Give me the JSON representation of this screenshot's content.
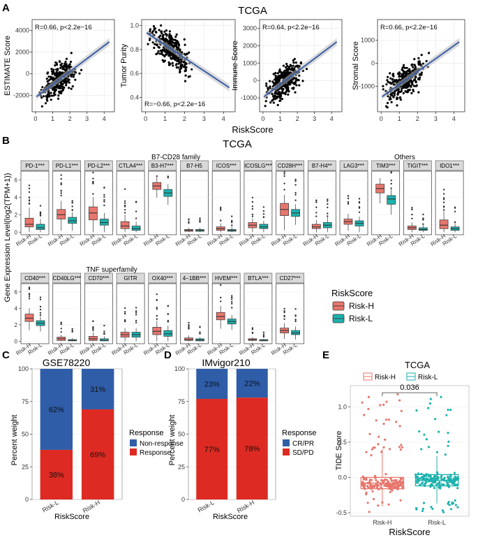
{
  "colors": {
    "risk_h": "#E8766D",
    "risk_l": "#1DB2AE",
    "blue": "#2F5DA8",
    "red": "#DD2B23",
    "strip": "#D9D9D9",
    "reg_line": "#3C5FA8",
    "ci": "#BDBDBD"
  },
  "panel_a": {
    "letter": "A",
    "title": "TCGA",
    "xlabel": "RiskScore",
    "xticks": [
      "0",
      "1",
      "2",
      "3",
      "4"
    ],
    "plots": [
      {
        "ylabel": "ESTIMATE Score",
        "annotation": "R=0.66, p<2.2e−16",
        "yticks": [
          "-2000",
          "0",
          "2000",
          "4000"
        ],
        "yrange": [
          -3500,
          5000
        ],
        "ann_pos": "top",
        "slope": 0.66
      },
      {
        "ylabel": "Tumor Purity",
        "annotation": "R=−0.66, p<2.2e−16",
        "yticks": [
          "0.4",
          "0.6",
          "0.8",
          "1.0"
        ],
        "yrange": [
          0.28,
          1.05
        ],
        "ann_pos": "bottom",
        "slope": -0.66
      },
      {
        "ylabel": "Immune Score",
        "annotation": "R=0.64, p<2.2e−16",
        "yticks": [
          "-1000",
          "0",
          "1000",
          "2000",
          "3000"
        ],
        "yrange": [
          -1800,
          3500
        ],
        "ann_pos": "top",
        "slope": 0.64
      },
      {
        "ylabel": "Stromal Score",
        "annotation": "R=0.66, p<2.2e−16",
        "yticks": [
          "-1000",
          "0",
          "1000"
        ],
        "yrange": [
          -2100,
          1900
        ],
        "ann_pos": "top",
        "slope": 0.66
      }
    ]
  },
  "panel_b": {
    "letter": "B",
    "title": "TCGA",
    "ylabel": "Gene Expression Level(log2(TPM+1))",
    "family_labels": [
      "B7-CD28 family",
      "Others",
      "TNF superfamily"
    ],
    "yticks": [
      "0",
      "2",
      "4",
      "6"
    ],
    "groups": [
      "Risk-H",
      "Risk-L"
    ],
    "legend_title": "RiskScore",
    "row1": [
      {
        "gene": "PD-1***",
        "h": [
          0.6,
          0.9,
          1.6,
          2.8
        ],
        "l": [
          0.3,
          0.5,
          0.9,
          1.5
        ]
      },
      {
        "gene": "PD-L1***",
        "h": [
          1.5,
          2.0,
          2.6,
          3.6
        ],
        "l": [
          1.0,
          1.3,
          1.7,
          2.3
        ]
      },
      {
        "gene": "PD-L2***",
        "h": [
          1.4,
          2.2,
          2.9,
          4.0
        ],
        "l": [
          0.8,
          1.1,
          1.5,
          2.2
        ]
      },
      {
        "gene": "CTLA4***",
        "h": [
          0.4,
          0.7,
          1.2,
          2.0
        ],
        "l": [
          0.2,
          0.4,
          0.7,
          1.2
        ]
      },
      {
        "gene": "B3-H7***",
        "h": [
          4.9,
          5.3,
          5.7,
          6.3
        ],
        "l": [
          4.1,
          4.5,
          4.9,
          5.5
        ]
      },
      {
        "gene": "B7-H5",
        "h": [
          0.1,
          0.2,
          0.3,
          0.5
        ],
        "l": [
          0.1,
          0.2,
          0.3,
          0.5
        ]
      },
      {
        "gene": "ICOS***",
        "h": [
          0.2,
          0.4,
          0.6,
          1.0
        ],
        "l": [
          0.1,
          0.2,
          0.3,
          0.6
        ]
      },
      {
        "gene": "ICOSLG***",
        "h": [
          0.5,
          0.8,
          1.1,
          1.6
        ],
        "l": [
          0.4,
          0.6,
          0.9,
          1.3
        ]
      },
      {
        "gene": "CD28H***",
        "h": [
          1.9,
          2.6,
          3.3,
          4.3
        ],
        "l": [
          1.8,
          2.2,
          2.6,
          3.2
        ]
      },
      {
        "gene": "B7-H4**",
        "h": [
          0.4,
          0.6,
          0.9,
          1.4
        ],
        "l": [
          0.5,
          0.8,
          1.1,
          1.7
        ]
      },
      {
        "gene": "LAG3***",
        "h": [
          0.9,
          1.2,
          1.5,
          2.1
        ],
        "l": [
          0.7,
          1.0,
          1.3,
          1.8
        ]
      },
      {
        "gene": "TIM3***",
        "h": [
          4.5,
          5.0,
          5.5,
          6.2
        ],
        "l": [
          3.2,
          3.8,
          4.2,
          4.9
        ]
      },
      {
        "gene": "TIGIT***",
        "h": [
          0.3,
          0.5,
          0.7,
          1.1
        ],
        "l": [
          0.2,
          0.3,
          0.5,
          0.8
        ]
      },
      {
        "gene": "IDO1***",
        "h": [
          0.4,
          0.8,
          1.4,
          2.4
        ],
        "l": [
          0.2,
          0.4,
          0.6,
          1.0
        ]
      }
    ],
    "row2": [
      {
        "gene": "CD40***",
        "h": [
          2.4,
          2.8,
          3.3,
          4.0
        ],
        "l": [
          1.9,
          2.2,
          2.5,
          3.0
        ]
      },
      {
        "gene": "CD40LG***",
        "h": [
          0.1,
          0.3,
          0.5,
          0.8
        ],
        "l": [
          0.05,
          0.1,
          0.2,
          0.4
        ]
      },
      {
        "gene": "CD70***",
        "h": [
          0.1,
          0.3,
          0.6,
          1.1
        ],
        "l": [
          0.05,
          0.1,
          0.3,
          0.6
        ]
      },
      {
        "gene": "GITR",
        "h": [
          0.5,
          0.8,
          1.1,
          1.6
        ],
        "l": [
          0.5,
          0.8,
          1.1,
          1.6
        ]
      },
      {
        "gene": "OX40***",
        "h": [
          0.8,
          1.2,
          1.7,
          2.5
        ],
        "l": [
          0.6,
          0.9,
          1.3,
          1.9
        ]
      },
      {
        "gene": "4−1BB***",
        "h": [
          0.1,
          0.2,
          0.4,
          0.7
        ],
        "l": [
          0.05,
          0.15,
          0.3,
          0.5
        ]
      },
      {
        "gene": "HVEM***",
        "h": [
          2.6,
          3.0,
          3.5,
          4.3
        ],
        "l": [
          2.1,
          2.4,
          2.7,
          3.2
        ]
      },
      {
        "gene": "BTLA***",
        "h": [
          0.1,
          0.2,
          0.3,
          0.5
        ],
        "l": [
          0.05,
          0.1,
          0.2,
          0.3
        ]
      },
      {
        "gene": "CD27***",
        "h": [
          1.0,
          1.3,
          1.6,
          2.2
        ],
        "l": [
          0.8,
          1.0,
          1.3,
          1.8
        ]
      }
    ]
  },
  "panel_c": {
    "letter": "C",
    "title": "GSE78220",
    "ylabel": "Percent weight",
    "xlabel": "RiskScore",
    "categories": [
      "Risk-L",
      "Risk-H"
    ],
    "yticks": [
      "0",
      "25",
      "50",
      "75",
      "100"
    ],
    "series": [
      {
        "name": "Response",
        "values": [
          38,
          69
        ],
        "labels": [
          "38%",
          "69%"
        ]
      },
      {
        "name": "Non-response",
        "values": [
          62,
          31
        ],
        "labels": [
          "62%",
          "31%"
        ]
      }
    ],
    "legend_title": "Response"
  },
  "panel_d": {
    "letter": "D",
    "title": "IMvigor210",
    "ylabel": "Percent weight",
    "xlabel": "RiskScore",
    "categories": [
      "Risk-L",
      "Risk-H"
    ],
    "yticks": [
      "0",
      "25",
      "50",
      "75",
      "100"
    ],
    "series": [
      {
        "name": "SD/PD",
        "values": [
          77,
          78
        ],
        "labels": [
          "77%",
          "78%"
        ]
      },
      {
        "name": "CR/PR",
        "values": [
          23,
          22
        ],
        "labels": [
          "23%",
          "22%"
        ]
      }
    ],
    "legend_title": "Response"
  },
  "panel_e": {
    "letter": "E",
    "title": "TCGA",
    "ylabel": "TIDE Score",
    "xlabel": "RiskScore",
    "legend_items": [
      "Risk-H",
      "Risk-L"
    ],
    "categories": [
      "Risk-H",
      "Risk-L"
    ],
    "yticks": [
      "-0.5",
      "0.0",
      "0.5",
      "1.0"
    ],
    "yrange": [
      -0.55,
      1.3
    ],
    "pvalue": "0.036",
    "boxes": [
      [
        -0.16,
        -0.08,
        0.0,
        0.4
      ],
      [
        -0.12,
        -0.04,
        0.04,
        0.3
      ]
    ]
  },
  "chart_data": [
    {
      "type": "scatter",
      "title": "TCGA",
      "xlabel": "RiskScore",
      "ylabel": "ESTIMATE Score",
      "series": [
        {
          "name": "ESTIMATE Score",
          "correlation": 0.66
        }
      ],
      "annotations": [
        "R=0.66, p<2.2e−16"
      ]
    },
    {
      "type": "scatter",
      "xlabel": "RiskScore",
      "ylabel": "Tumor Purity",
      "series": [
        {
          "name": "Tumor Purity",
          "correlation": -0.66
        }
      ],
      "annotations": [
        "R=−0.66, p<2.2e−16"
      ]
    },
    {
      "type": "scatter",
      "xlabel": "RiskScore",
      "ylabel": "Immune Score",
      "series": [
        {
          "name": "Immune Score",
          "correlation": 0.64
        }
      ],
      "annotations": [
        "R=0.64, p<2.2e−16"
      ]
    },
    {
      "type": "scatter",
      "xlabel": "RiskScore",
      "ylabel": "Stromal Score",
      "series": [
        {
          "name": "Stromal Score",
          "correlation": 0.66
        }
      ],
      "annotations": [
        "R=0.66, p<2.2e−16"
      ]
    },
    {
      "type": "bar",
      "title": "GSE78220",
      "categories": [
        "Risk-L",
        "Risk-H"
      ],
      "series": [
        {
          "name": "Response",
          "values": [
            38,
            69
          ]
        },
        {
          "name": "Non-response",
          "values": [
            62,
            31
          ]
        }
      ],
      "ylabel": "Percent weight",
      "ylim": [
        0,
        100
      ]
    },
    {
      "type": "bar",
      "title": "IMvigor210",
      "categories": [
        "Risk-L",
        "Risk-H"
      ],
      "series": [
        {
          "name": "SD/PD",
          "values": [
            77,
            78
          ]
        },
        {
          "name": "CR/PR",
          "values": [
            23,
            22
          ]
        }
      ],
      "ylabel": "Percent weight",
      "ylim": [
        0,
        100
      ]
    },
    {
      "type": "box",
      "title": "TCGA",
      "categories": [
        "Risk-H",
        "Risk-L"
      ],
      "ylabel": "TIDE Score",
      "annotations": [
        "0.036"
      ]
    }
  ]
}
